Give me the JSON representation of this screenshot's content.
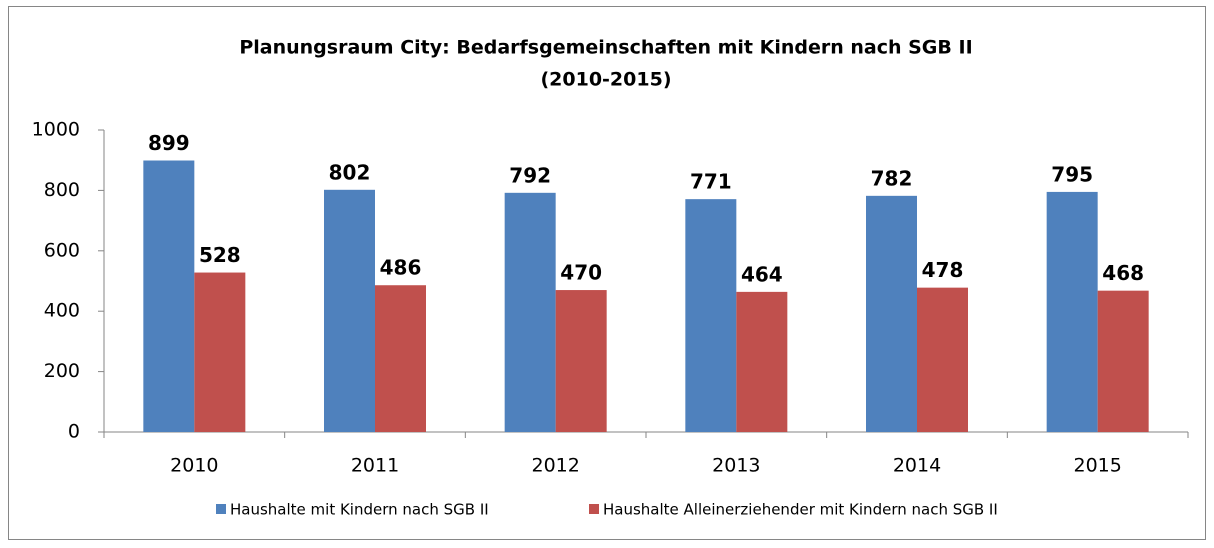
{
  "chart_data": {
    "type": "bar",
    "title": [
      "Planungsraum City: Bedarfsgemeinschaften mit Kindern nach SGB II",
      "(2010-2015)"
    ],
    "categories": [
      "2010",
      "2011",
      "2012",
      "2013",
      "2014",
      "2015"
    ],
    "series": [
      {
        "name": "Haushalte mit Kindern nach SGB II",
        "color": "#4f81bd",
        "values": [
          899,
          802,
          792,
          771,
          782,
          795
        ]
      },
      {
        "name": "Haushalte Alleinerziehender mit Kindern nach SGB II",
        "color": "#c0504d",
        "values": [
          528,
          486,
          470,
          464,
          478,
          468
        ]
      }
    ],
    "ylim": [
      0,
      1000
    ],
    "yticks": [
      0,
      200,
      400,
      600,
      800,
      1000
    ],
    "grid": false,
    "legend": "bottom"
  }
}
